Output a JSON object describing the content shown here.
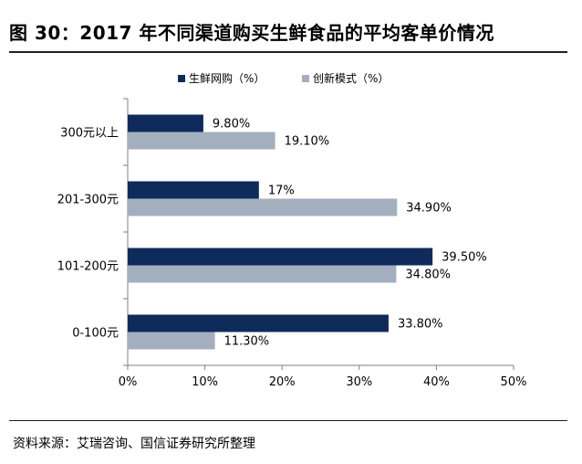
{
  "title": "图 30：2017 年不同渠道购买生鲜食品的平均客单价情况",
  "source": "资料来源：艾瑞咨询、国信证券研究所整理",
  "chart_data": {
    "type": "bar",
    "orientation": "horizontal",
    "categories": [
      "300元以上",
      "201-300元",
      "101-200元",
      "0-100元"
    ],
    "series": [
      {
        "name": "生鲜网购（%）",
        "color": "#0f2b5b",
        "values": [
          9.8,
          17,
          39.5,
          33.8
        ],
        "labels": [
          "9.80%",
          "17%",
          "39.50%",
          "33.80%"
        ]
      },
      {
        "name": "创新模式（%）",
        "color": "#a3afbe",
        "values": [
          19.1,
          34.9,
          34.8,
          11.3
        ],
        "labels": [
          "19.10%",
          "34.90%",
          "34.80%",
          "11.30%"
        ]
      }
    ],
    "xlim": [
      0,
      50
    ],
    "xticks": [
      0,
      10,
      20,
      30,
      40,
      50
    ],
    "xtick_labels": [
      "0%",
      "10%",
      "20%",
      "30%",
      "40%",
      "50%"
    ],
    "grid": false,
    "legend_position": "top-center"
  }
}
